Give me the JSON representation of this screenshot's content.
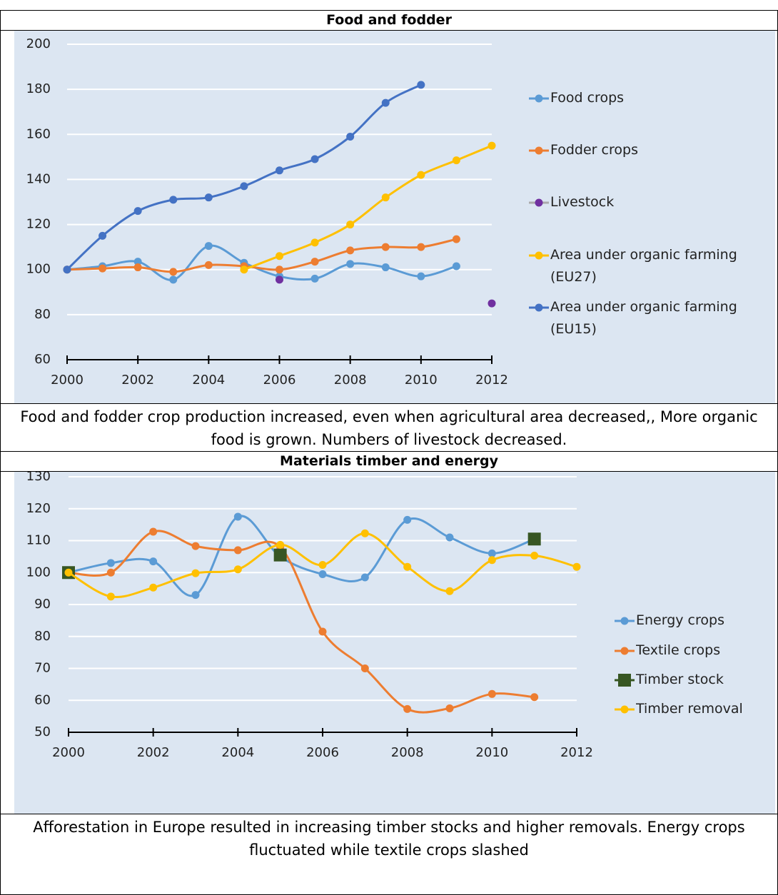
{
  "chart_data": [
    {
      "type": "line",
      "title": "Food and fodder",
      "smooth": true,
      "grid": true,
      "legend": "right",
      "x": [
        2000,
        2001,
        2002,
        2003,
        2004,
        2005,
        2006,
        2007,
        2008,
        2009,
        2010,
        2011,
        2012
      ],
      "xlim": [
        2000,
        2012
      ],
      "xticks": [
        2000,
        2002,
        2004,
        2006,
        2008,
        2010,
        2012
      ],
      "ylim": [
        60,
        200
      ],
      "yticks": [
        60,
        80,
        100,
        120,
        140,
        160,
        180,
        200
      ],
      "series": [
        {
          "name": "Food crops",
          "color": "#5b9bd5",
          "marker": "circle",
          "values": [
            100,
            101.5,
            103.5,
            95.5,
            110.5,
            103,
            97,
            96,
            102.5,
            101,
            97,
            101.5,
            null
          ]
        },
        {
          "name": "Fodder crops",
          "color": "#ed7d31",
          "marker": "circle",
          "values": [
            100,
            100.5,
            101,
            99,
            102,
            101.5,
            100,
            103.5,
            108.5,
            110,
            110,
            113.5,
            null
          ]
        },
        {
          "name": "Livestock",
          "color": "#7030a0",
          "marker": "circle",
          "line": false,
          "values": [
            null,
            null,
            null,
            null,
            null,
            null,
            95.5,
            null,
            null,
            null,
            null,
            null,
            85
          ]
        },
        {
          "name": "Area under organic farming (EU27)",
          "color": "#ffc000",
          "marker": "circle",
          "values": [
            null,
            null,
            null,
            null,
            null,
            100,
            106,
            112,
            120,
            132,
            142,
            148.5,
            155
          ]
        },
        {
          "name": "Area under organic farming (EU15)",
          "color": "#4472c4",
          "marker": "circle",
          "values": [
            100,
            115,
            126,
            131,
            132,
            137,
            144,
            149,
            159,
            174,
            182,
            null,
            null
          ]
        }
      ],
      "caption": "Food and fodder crop production increased, even when agricultural area decreased,, More organic food is grown. Numbers of livestock decreased."
    },
    {
      "type": "line",
      "title": "Materials timber and energy",
      "smooth": true,
      "grid": true,
      "legend": "right",
      "x": [
        2000,
        2001,
        2002,
        2003,
        2004,
        2005,
        2006,
        2007,
        2008,
        2009,
        2010,
        2011,
        2012
      ],
      "xlim": [
        2000,
        2012
      ],
      "xticks": [
        2000,
        2002,
        2004,
        2006,
        2008,
        2010,
        2012
      ],
      "ylim": [
        50,
        130
      ],
      "yticks": [
        50,
        60,
        70,
        80,
        90,
        100,
        110,
        120,
        130
      ],
      "series": [
        {
          "name": "Energy crops",
          "color": "#5b9bd5",
          "marker": "circle",
          "values": [
            100,
            103,
            103.5,
            93,
            117.5,
            105,
            99.5,
            98.5,
            116.5,
            111,
            106,
            110.5,
            null
          ]
        },
        {
          "name": "Textile crops",
          "color": "#ed7d31",
          "marker": "circle",
          "values": [
            100,
            100,
            112.8,
            108.3,
            107,
            108,
            81.5,
            70,
            57.3,
            57.5,
            62,
            61,
            null
          ]
        },
        {
          "name": "Timber stock",
          "color": "#375623",
          "marker": "square",
          "values": [
            100,
            null,
            null,
            null,
            null,
            105.5,
            null,
            null,
            null,
            null,
            null,
            110.5,
            null
          ]
        },
        {
          "name": "Timber removal",
          "color": "#ffc000",
          "marker": "circle",
          "values": [
            100,
            92.5,
            95.3,
            99.8,
            101,
            108.7,
            102.4,
            112.3,
            101.8,
            94.2,
            103.9,
            105.3,
            101.8
          ]
        }
      ],
      "caption": "Afforestation in Europe resulted in increasing timber stocks and higher removals. Energy crops fluctuated while textile crops slashed"
    }
  ]
}
